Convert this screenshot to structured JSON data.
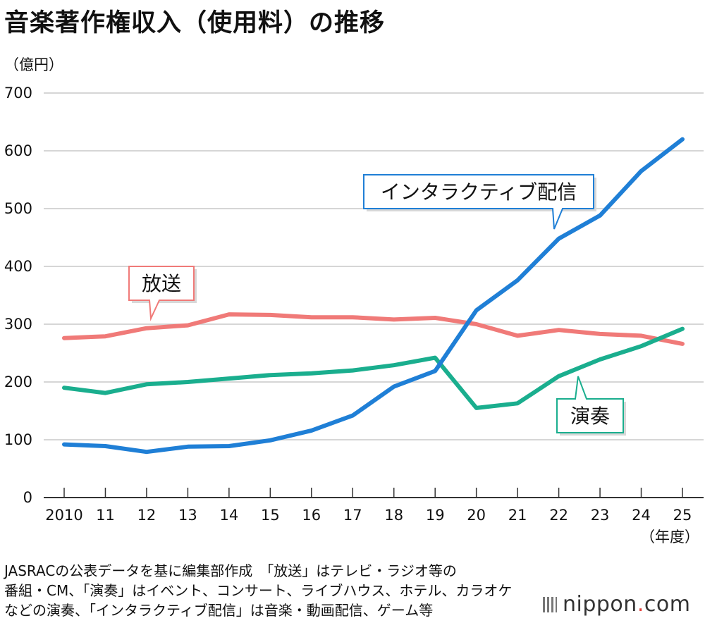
{
  "title": "音楽著作権収入（使用料）の推移",
  "unit": "（億円）",
  "x_unit": "（年度）",
  "note_lines": [
    "JASRACの公表データを基に編集部作成　「放送」はテレビ・ラジオ等の",
    "番組・CM、「演奏」はイベント、コンサート、ライブハウス、ホテル、カラオケ",
    "などの演奏、「インタラクティブ配信」は音楽・動画配信、ゲーム等"
  ],
  "brand": {
    "name": "nippon",
    "dot": ".",
    "suffix": "com"
  },
  "chart_data": {
    "type": "line",
    "title": "音楽著作権収入（使用料）の推移",
    "ylabel": "（億円）",
    "xlabel": "（年度）",
    "ylim": [
      0,
      700
    ],
    "yticks": [
      0,
      100,
      200,
      300,
      400,
      500,
      600,
      700
    ],
    "grid": true,
    "categories": [
      "2010",
      "11",
      "12",
      "13",
      "14",
      "15",
      "16",
      "17",
      "18",
      "19",
      "20",
      "21",
      "22",
      "23",
      "24",
      "25"
    ],
    "series": [
      {
        "name": "放送",
        "color": "#f07a78",
        "values": [
          276,
          279,
          293,
          298,
          317,
          316,
          312,
          312,
          308,
          311,
          300,
          280,
          290,
          283,
          280,
          266
        ]
      },
      {
        "name": "演奏",
        "color": "#1aae8e",
        "values": [
          190,
          181,
          196,
          200,
          206,
          212,
          215,
          220,
          229,
          242,
          155,
          163,
          210,
          239,
          262,
          292
        ]
      },
      {
        "name": "インタラクティブ配信",
        "color": "#1f7fd6",
        "values": [
          92,
          89,
          79,
          88,
          89,
          99,
          116,
          142,
          192,
          219,
          324,
          376,
          448,
          488,
          565,
          620
        ]
      }
    ]
  }
}
